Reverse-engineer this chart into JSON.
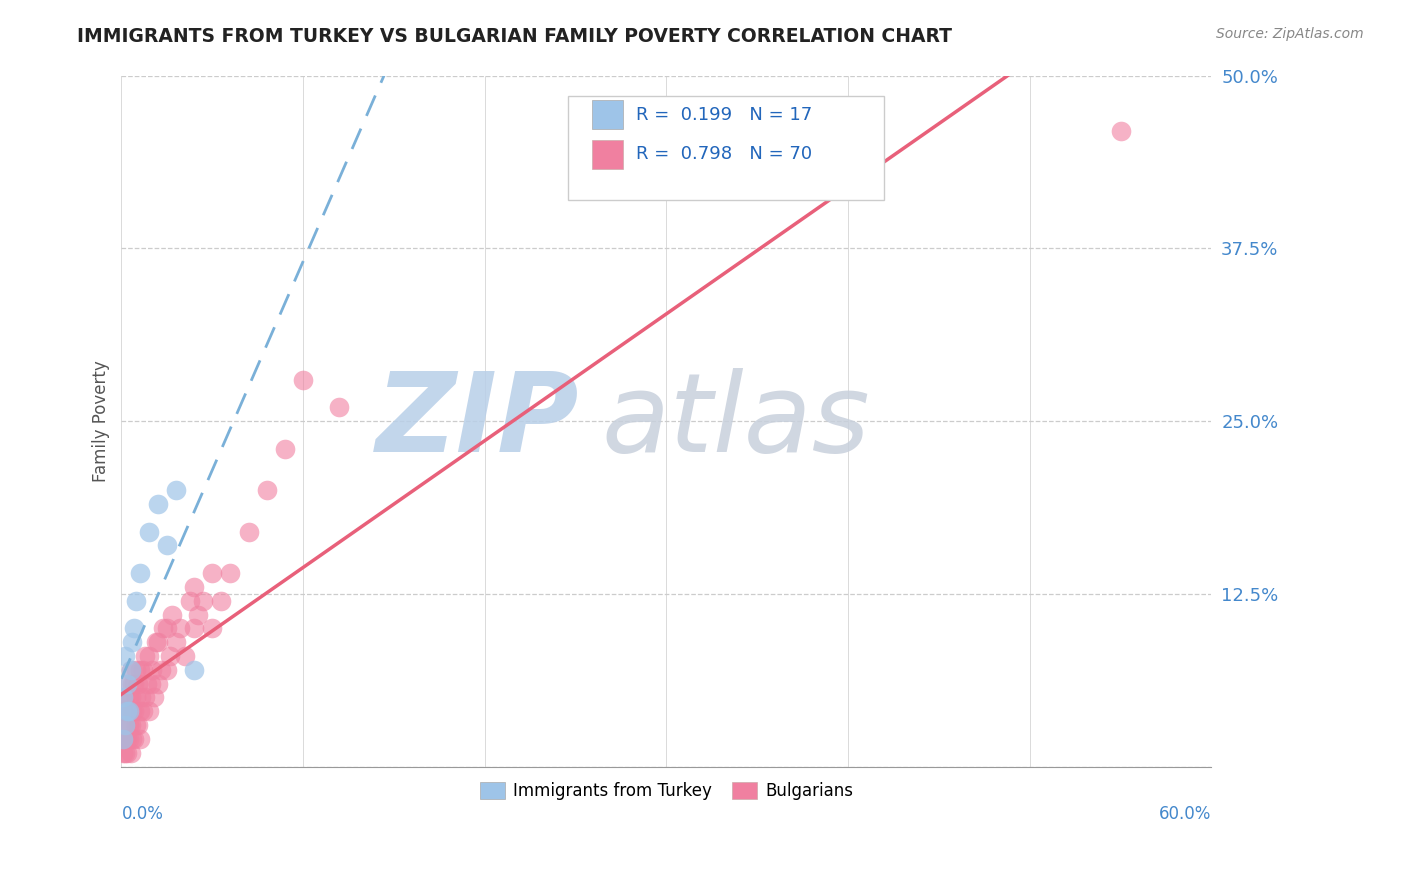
{
  "title": "IMMIGRANTS FROM TURKEY VS BULGARIAN FAMILY POVERTY CORRELATION CHART",
  "source": "Source: ZipAtlas.com",
  "ylabel": "Family Poverty",
  "legend_label1": "Immigrants from Turkey",
  "legend_label2": "Bulgarians",
  "r1": 0.199,
  "n1": 17,
  "r2": 0.798,
  "n2": 70,
  "color1": "#9ec4e8",
  "color2": "#f080a0",
  "line1_color": "#7ab0d8",
  "line2_color": "#e8607a",
  "xmin": 0.0,
  "xmax": 0.6,
  "ymin": 0.0,
  "ymax": 0.5,
  "yticks": [
    0.0,
    0.125,
    0.25,
    0.375,
    0.5
  ],
  "ytick_labels": [
    "",
    "12.5%",
    "25.0%",
    "37.5%",
    "50.0%"
  ],
  "background_color": "#ffffff",
  "watermark_zip_color": "#b8cfe8",
  "watermark_atlas_color": "#c8d0dc",
  "grid_color": "#cccccc"
}
